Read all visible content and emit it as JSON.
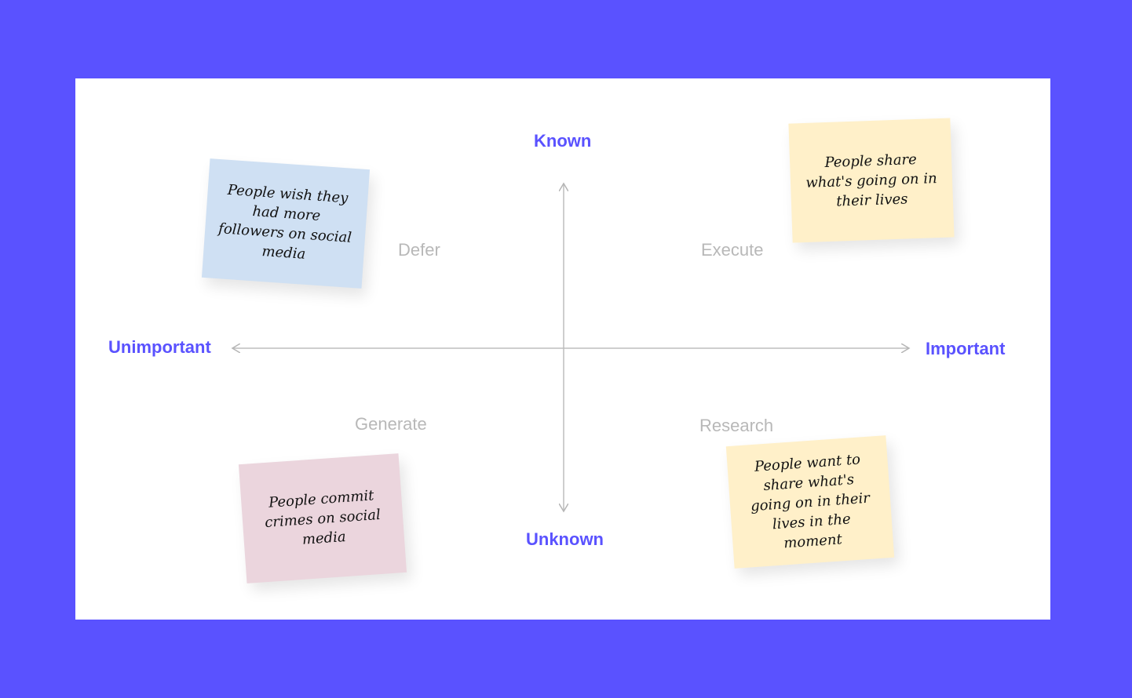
{
  "axes": {
    "top": "Known",
    "bottom": "Unknown",
    "left": "Unimportant",
    "right": "Important"
  },
  "quadrants": {
    "top_left": "Defer",
    "top_right": "Execute",
    "bottom_left": "Generate",
    "bottom_right": "Research"
  },
  "notes": [
    {
      "text": "People wish they had more followers on social media",
      "color": "#cfe0f3"
    },
    {
      "text": "People share what's going on in their lives",
      "color": "#fff0c9"
    },
    {
      "text": "People commit crimes on social media",
      "color": "#ebd5dd"
    },
    {
      "text": "People want to share what's going on in their lives in the moment",
      "color": "#fff0c9"
    }
  ],
  "colors": {
    "background": "#5a52ff",
    "board": "#ffffff",
    "axis_label": "#5a52ff",
    "quadrant_label": "#b8b8b8",
    "axis_line": "#bdbdbd"
  }
}
